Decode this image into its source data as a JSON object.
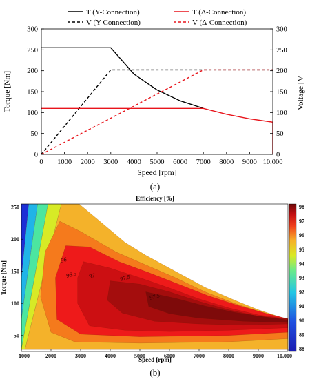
{
  "panel_a_caption": "(a)",
  "panel_b_caption": "(b)",
  "chart_data": [
    {
      "type": "line",
      "xlabel": "Speed [rpm]",
      "ylabel": "Torque [Nm]",
      "y2label": "Voltage [V]",
      "xlim": [
        0,
        10000
      ],
      "ylim": [
        0,
        300
      ],
      "y2lim": [
        0,
        300
      ],
      "xticks": [
        "0",
        "1000",
        "2000",
        "3000",
        "4000",
        "5000",
        "6000",
        "7000",
        "8000",
        "9000",
        "10,000"
      ],
      "yticks": [
        "0",
        "50",
        "100",
        "150",
        "200",
        "250",
        "300"
      ],
      "y2ticks": [
        "0",
        "50",
        "100",
        "150",
        "200",
        "250",
        "300"
      ],
      "legend_position": "top",
      "series": [
        {
          "name": "T (Y-Connection)",
          "color": "#000000",
          "style": "solid",
          "axis": "left",
          "x": [
            0,
            3000,
            4000,
            5000,
            6000,
            7000
          ],
          "y": [
            255,
            255,
            192,
            154,
            128,
            110
          ]
        },
        {
          "name": "V (Y-Connection)",
          "color": "#000000",
          "style": "dashed",
          "axis": "right",
          "x": [
            0,
            3000,
            10000
          ],
          "y": [
            0,
            202,
            202
          ]
        },
        {
          "name": "T (Δ-Connection)",
          "color": "#e8141b",
          "style": "solid",
          "axis": "left",
          "x": [
            0,
            7000,
            8000,
            9000,
            10000,
            10000
          ],
          "y": [
            110,
            110,
            96,
            85,
            77,
            0
          ]
        },
        {
          "name": "V (Δ-Connection)",
          "color": "#e8141b",
          "style": "dashed",
          "axis": "right",
          "x": [
            0,
            7000,
            10000
          ],
          "y": [
            0,
            202,
            202
          ]
        }
      ]
    },
    {
      "type": "heatmap",
      "title": "Efficiency [%]",
      "xlabel": "Speed [rpm]",
      "ylabel": "Torque [Nm]",
      "xlim": [
        1000,
        10000
      ],
      "ylim": [
        25,
        255
      ],
      "xticks": [
        "1000",
        "2000",
        "3000",
        "4000",
        "5000",
        "6000",
        "7000",
        "8000",
        "9000",
        "10,000"
      ],
      "yticks": [
        "50",
        "100",
        "150",
        "200",
        "250"
      ],
      "colorbar_range": [
        88,
        98
      ],
      "colorbar_ticks": [
        "88",
        "89",
        "90",
        "91",
        "92",
        "93",
        "94",
        "95",
        "96",
        "97",
        "98"
      ],
      "contour_labels": [
        "96",
        "96.5",
        "97",
        "97.5",
        "97.5"
      ],
      "regions": [
        {
          "level": 90.5,
          "color": "#1c2fd6",
          "pts": [
            [
              1000,
              255
            ],
            [
              1250,
              255
            ],
            [
              1000,
              140
            ]
          ]
        },
        {
          "level": 92.5,
          "color": "#20b4e8",
          "pts": [
            [
              1250,
              255
            ],
            [
              1550,
              255
            ],
            [
              1000,
              75
            ],
            [
              1000,
              140
            ]
          ]
        },
        {
          "level": 93.5,
          "color": "#4ce6a0",
          "pts": [
            [
              1550,
              255
            ],
            [
              1900,
              255
            ],
            [
              1000,
              28
            ],
            [
              1000,
              75
            ]
          ]
        },
        {
          "level": 94.5,
          "color": "#d7ea26",
          "pts": [
            [
              1900,
              255
            ],
            [
              2350,
              255
            ],
            [
              1120,
              28
            ],
            [
              1000,
              28
            ]
          ]
        },
        {
          "level": 95.5,
          "color": "#f4b22a",
          "pts": [
            [
              2350,
              255
            ],
            [
              2950,
              255
            ],
            [
              3600,
              230
            ],
            [
              4500,
              195
            ],
            [
              5200,
              175
            ],
            [
              6200,
              150
            ],
            [
              7200,
              125
            ],
            [
              8200,
              105
            ],
            [
              9000,
              90
            ],
            [
              10000,
              75
            ],
            [
              10000,
              28
            ],
            [
              1120,
              28
            ]
          ]
        },
        {
          "level": 96.0,
          "color": "#f57a1c",
          "pts": [
            [
              2300,
              228
            ],
            [
              3000,
              212
            ],
            [
              4200,
              180
            ],
            [
              5200,
              160
            ],
            [
              6200,
              140
            ],
            [
              7200,
              118
            ],
            [
              8200,
              100
            ],
            [
              9200,
              85
            ],
            [
              10000,
              75
            ],
            [
              10000,
              45
            ],
            [
              8000,
              40
            ],
            [
              5000,
              38
            ],
            [
              2800,
              40
            ],
            [
              2000,
              55
            ],
            [
              1650,
              110
            ],
            [
              1800,
              180
            ]
          ]
        },
        {
          "level": 96.5,
          "color": "#ee1a1a",
          "pts": [
            [
              2500,
              190
            ],
            [
              3300,
              188
            ],
            [
              4300,
              165
            ],
            [
              5300,
              148
            ],
            [
              6300,
              130
            ],
            [
              7300,
              112
            ],
            [
              8300,
              97
            ],
            [
              9300,
              84
            ],
            [
              10000,
              76
            ],
            [
              10000,
              55
            ],
            [
              8000,
              50
            ],
            [
              5000,
              48
            ],
            [
              3000,
              52
            ],
            [
              2200,
              75
            ],
            [
              2150,
              140
            ]
          ]
        },
        {
          "level": 97.0,
          "color": "#cc0f12",
          "pts": [
            [
              3100,
              165
            ],
            [
              4000,
              155
            ],
            [
              5000,
              140
            ],
            [
              6000,
              124
            ],
            [
              7000,
              107
            ],
            [
              8000,
              93
            ],
            [
              9000,
              82
            ],
            [
              10000,
              76
            ],
            [
              10000,
              62
            ],
            [
              8000,
              58
            ],
            [
              6000,
              56
            ],
            [
              4500,
              58
            ],
            [
              3300,
              65
            ],
            [
              2900,
              100
            ],
            [
              2900,
              140
            ]
          ]
        },
        {
          "level": 97.5,
          "color": "#a40d0d",
          "pts": [
            [
              4000,
              135
            ],
            [
              5000,
              130
            ],
            [
              6000,
              118
            ],
            [
              7000,
              103
            ],
            [
              8000,
              90
            ],
            [
              9000,
              80
            ],
            [
              10000,
              76
            ],
            [
              10000,
              68
            ],
            [
              8500,
              66
            ],
            [
              7000,
              68
            ],
            [
              5500,
              72
            ],
            [
              4400,
              85
            ],
            [
              3900,
              105
            ]
          ]
        },
        {
          "level": 98.0,
          "color": "#7e0a0a",
          "pts": [
            [
              5200,
              118
            ],
            [
              6200,
              108
            ],
            [
              7200,
              96
            ],
            [
              8200,
              86
            ],
            [
              9200,
              79
            ],
            [
              10000,
              74
            ],
            [
              10000,
              70
            ],
            [
              8500,
              72
            ],
            [
              7000,
              77
            ],
            [
              6000,
              84
            ],
            [
              5300,
              95
            ]
          ]
        }
      ]
    }
  ]
}
